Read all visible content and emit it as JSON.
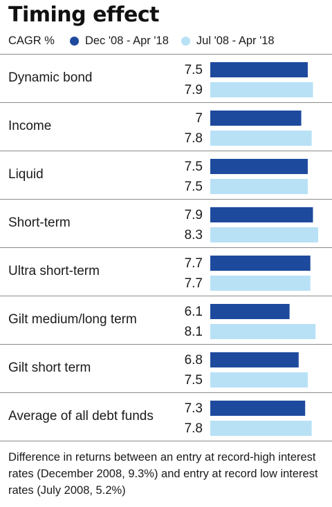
{
  "chart_data": {
    "type": "bar",
    "orientation": "horizontal",
    "title": "Timing effect",
    "unit_label": "CAGR %",
    "categories": [
      "Dynamic bond",
      "Income",
      "Liquid",
      "Short-term",
      "Ultra short-term",
      "Gilt medium/long term",
      "Gilt short term",
      "Average of all debt funds"
    ],
    "value_labels": [
      [
        "7.5",
        "7.9"
      ],
      [
        "7",
        "7.8"
      ],
      [
        "7.5",
        "7.5"
      ],
      [
        "7.9",
        "8.3"
      ],
      [
        "7.7",
        "7.7"
      ],
      [
        "6.1",
        "8.1"
      ],
      [
        "6.8",
        "7.5"
      ],
      [
        "7.3",
        "7.8"
      ]
    ],
    "series": [
      {
        "name": "Dec '08 - Apr '18",
        "color": "#1e4a9e",
        "values": [
          7.5,
          7.0,
          7.5,
          7.9,
          7.7,
          6.1,
          6.8,
          7.3
        ]
      },
      {
        "name": "Jul '08 - Apr '18",
        "color": "#b8e1f5",
        "values": [
          7.9,
          7.8,
          7.5,
          8.3,
          7.7,
          8.1,
          7.5,
          7.8
        ]
      }
    ],
    "legend_position": "top",
    "grid": false,
    "xlim": [
      0,
      8.3
    ],
    "note": "Difference in returns between an entry at record-high interest rates (December 2008, 9.3%) and entry at record low interest rates (July 2008, 5.2%)"
  }
}
